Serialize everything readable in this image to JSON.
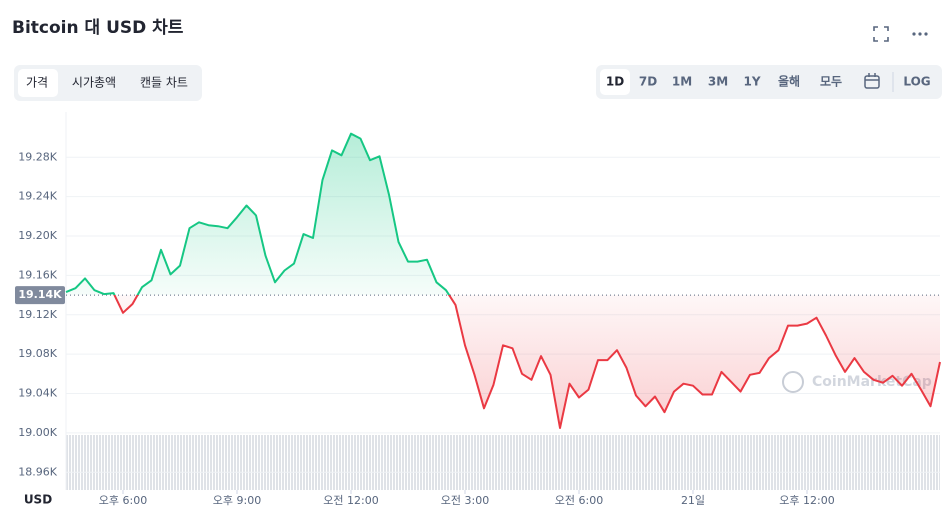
{
  "title": "Bitcoin 대 USD 차트",
  "tabs": [
    "가격",
    "시가총액",
    "캔들 차트"
  ],
  "ranges": [
    "1D",
    "7D",
    "1M",
    "3M",
    "1Y",
    "올해",
    "모두",
    "LOG"
  ],
  "chart_data": {
    "type": "line",
    "y_label": "USD",
    "watermark": "CoinMarketCap",
    "up_color": "#16c784",
    "down_color": "#ea3943",
    "grid": true,
    "baseline": {
      "value": 19140,
      "label": "19.14K"
    },
    "xlim": [
      16.5,
      39.5
    ],
    "xticks": [
      {
        "value": 18,
        "label": "오후 6:00"
      },
      {
        "value": 21,
        "label": "오후 9:00"
      },
      {
        "value": 24,
        "label": "오전 12:00"
      },
      {
        "value": 27,
        "label": "오전 3:00"
      },
      {
        "value": 30,
        "label": "오전 6:00"
      },
      {
        "value": 33,
        "label": "21일"
      },
      {
        "value": 36,
        "label": "오후 12:00"
      }
    ],
    "ylim": [
      18942,
      19326
    ],
    "yticks": [
      {
        "value": 18960,
        "label": "18.96K"
      },
      {
        "value": 19000,
        "label": "19.00K"
      },
      {
        "value": 19040,
        "label": "19.04K"
      },
      {
        "value": 19080,
        "label": "19.08K"
      },
      {
        "value": 19120,
        "label": "19.12K"
      },
      {
        "value": 19160,
        "label": "19.16K"
      },
      {
        "value": 19200,
        "label": "19.20K"
      },
      {
        "value": 19240,
        "label": "19.24K"
      },
      {
        "value": 19280,
        "label": "19.28K"
      }
    ],
    "x": [
      16.5,
      16.75,
      17,
      17.25,
      17.5,
      17.75,
      18,
      18.25,
      18.5,
      18.75,
      19,
      19.25,
      19.5,
      19.75,
      20,
      20.25,
      20.5,
      20.75,
      21,
      21.25,
      21.5,
      21.75,
      22,
      22.25,
      22.5,
      22.75,
      23,
      23.25,
      23.5,
      23.75,
      24,
      24.25,
      24.5,
      24.75,
      25,
      25.25,
      25.5,
      25.75,
      26,
      26.25,
      26.5,
      26.75,
      27,
      27.25,
      27.5,
      27.75,
      28,
      28.25,
      28.5,
      28.75,
      29,
      29.25,
      29.5,
      29.75,
      30,
      30.25,
      30.5,
      30.75,
      31,
      31.25,
      31.5,
      31.75,
      32,
      32.25,
      32.5,
      32.75,
      33,
      33.25,
      33.5,
      33.75,
      34,
      34.25,
      34.5,
      34.75,
      35,
      35.25,
      35.5,
      35.75,
      36,
      36.25,
      36.5,
      36.75,
      37,
      37.25,
      37.5,
      37.75,
      38,
      38.25,
      38.5,
      38.75,
      39,
      39.25,
      39.5
    ],
    "series": [
      {
        "name": "가격",
        "values": [
          19143,
          19147,
          19157,
          19145,
          19141,
          19142,
          19122,
          19131,
          19148,
          19155,
          19186,
          19161,
          19170,
          19208,
          19214,
          19211,
          19210,
          19208,
          19219,
          19231,
          19221,
          19180,
          19153,
          19165,
          19172,
          19202,
          19198,
          19257,
          19287,
          19282,
          19304,
          19299,
          19277,
          19281,
          19242,
          19194,
          19174,
          19174,
          19176,
          19153,
          19145,
          19130,
          19089,
          19059,
          19025,
          19049,
          19089,
          19086,
          19060,
          19054,
          19078,
          19059,
          19005,
          19050,
          19036,
          19044,
          19074,
          19074,
          19084,
          19066,
          19038,
          19027,
          19037,
          19021,
          19042,
          19050,
          19048,
          19039,
          19039,
          19062,
          19052,
          19042,
          19059,
          19061,
          19076,
          19084,
          19109,
          19109,
          19111,
          19117,
          19099,
          19079,
          19062,
          19076,
          19062,
          19054,
          19051,
          19058,
          19048,
          19060,
          19044,
          19027,
          19072
        ]
      }
    ]
  }
}
